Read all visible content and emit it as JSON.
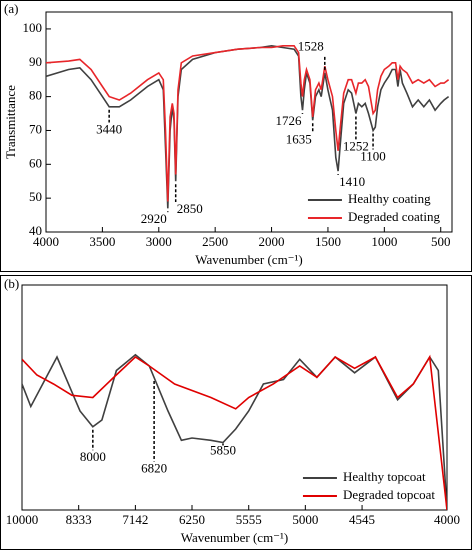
{
  "chart_data": [
    {
      "type": "line",
      "panel_label": "(a)",
      "xlabel": "Wavenumber (cm⁻¹)",
      "ylabel": "Transmittance",
      "xlim": [
        4000,
        400
      ],
      "xticks": [
        4000,
        3500,
        3000,
        2500,
        2000,
        1500,
        1000,
        500
      ],
      "ylim": [
        40,
        105
      ],
      "yticks": [
        40,
        50,
        60,
        70,
        80,
        90,
        100
      ],
      "legend": "lower right",
      "x": [
        4000,
        3800,
        3700,
        3600,
        3500,
        3440,
        3350,
        3250,
        3100,
        3000,
        2960,
        2940,
        2920,
        2900,
        2880,
        2865,
        2850,
        2830,
        2800,
        2700,
        2500,
        2300,
        2100,
        2000,
        1900,
        1800,
        1760,
        1740,
        1726,
        1710,
        1690,
        1660,
        1635,
        1610,
        1580,
        1560,
        1528,
        1500,
        1460,
        1430,
        1410,
        1390,
        1360,
        1320,
        1290,
        1252,
        1230,
        1200,
        1170,
        1140,
        1100,
        1080,
        1060,
        1030,
        1000,
        960,
        930,
        900,
        880,
        860,
        840,
        800,
        750,
        700,
        650,
        600,
        550,
        500,
        470,
        430
      ],
      "series": [
        {
          "name": "Healthy coating",
          "color": "#404040",
          "values": [
            86,
            88,
            88.5,
            85,
            80,
            77,
            77,
            79,
            83,
            85,
            82,
            65,
            47,
            70,
            77,
            73,
            55,
            80,
            88,
            91,
            93,
            94,
            94.5,
            95,
            94.5,
            94,
            92,
            80,
            76,
            82,
            87,
            84,
            73,
            80,
            82,
            80,
            87,
            82,
            76,
            62,
            58,
            66,
            78,
            82,
            81,
            75,
            78,
            77,
            78,
            75,
            70,
            71,
            77,
            82,
            84,
            86,
            88,
            88,
            83,
            88,
            84,
            81,
            77,
            79,
            77,
            79,
            76,
            78,
            79,
            80
          ]
        },
        {
          "name": "Degraded coating",
          "color": "#e8262a",
          "values": [
            90,
            90.5,
            91,
            88,
            83,
            80,
            79,
            81,
            85,
            87,
            85,
            70,
            49,
            74,
            78,
            75,
            57,
            82,
            90,
            92,
            93,
            94,
            94.5,
            94.5,
            95,
            95,
            93,
            84,
            80,
            85,
            88,
            85,
            74,
            82,
            84,
            82,
            89,
            85,
            80,
            70,
            64,
            71,
            81,
            85,
            85,
            81,
            84,
            84,
            85,
            83,
            75,
            76,
            82,
            86,
            88,
            89,
            90,
            90,
            85,
            89,
            88,
            87,
            84,
            85,
            84,
            85,
            83,
            84,
            84,
            85
          ]
        }
      ],
      "annotations": [
        {
          "text": "3440",
          "x": 3440,
          "y": 70
        },
        {
          "text": "2920",
          "x": 2920,
          "y": 43.5
        },
        {
          "text": "2850",
          "x": 2850,
          "y": 46.5
        },
        {
          "text": "1726",
          "x": 1726,
          "y": 72.5
        },
        {
          "text": "1635",
          "x": 1635,
          "y": 67
        },
        {
          "text": "1528",
          "x": 1528,
          "y": 94.5
        },
        {
          "text": "1410",
          "x": 1410,
          "y": 54.5
        },
        {
          "text": "1252",
          "x": 1252,
          "y": 65
        },
        {
          "text": "1100",
          "x": 1100,
          "y": 62
        }
      ]
    },
    {
      "type": "line",
      "panel_label": "(b)",
      "xlabel": "Wavenumber (cm⁻¹)",
      "xscale": "reciprocal",
      "xlim": [
        10000,
        4000
      ],
      "xticks": [
        10000,
        8333,
        7142,
        6250,
        5555,
        5000,
        4545,
        4000
      ],
      "ylim": [
        0,
        100
      ],
      "legend": "lower right",
      "series": [
        {
          "name": "Healthy topcoat",
          "color": "#404040",
          "x": [
            10000,
            9700,
            8900,
            8300,
            8000,
            7800,
            7500,
            7142,
            6900,
            6600,
            6400,
            6250,
            6000,
            5850,
            5700,
            5555,
            5400,
            5200,
            5050,
            4900,
            4750,
            4600,
            4450,
            4300,
            4200,
            4100,
            4050,
            4000
          ],
          "values": [
            56,
            46,
            68,
            44,
            37,
            40,
            62,
            69,
            64,
            44,
            31,
            32,
            31,
            30,
            36,
            44,
            56,
            58,
            67,
            59,
            68,
            61,
            68,
            49,
            56,
            68,
            62,
            0
          ]
        },
        {
          "name": "Degraded topcoat",
          "color": "#e00000",
          "x": [
            10000,
            9500,
            9000,
            8500,
            8000,
            7600,
            7142,
            6900,
            6500,
            6000,
            5700,
            5555,
            5300,
            5050,
            4900,
            4750,
            4600,
            4450,
            4300,
            4200,
            4100,
            4000
          ],
          "values": [
            67,
            60,
            56,
            51,
            50,
            58,
            68,
            64,
            56,
            50,
            45,
            50,
            56,
            64,
            59,
            68,
            63,
            68,
            50,
            56,
            68,
            0
          ]
        }
      ],
      "annotations": [
        {
          "text": "8000",
          "x": 8000,
          "y": 23
        },
        {
          "text": "6820",
          "x": 6820,
          "y": 18
        },
        {
          "text": "5850",
          "x": 5850,
          "y": 26
        }
      ]
    }
  ]
}
